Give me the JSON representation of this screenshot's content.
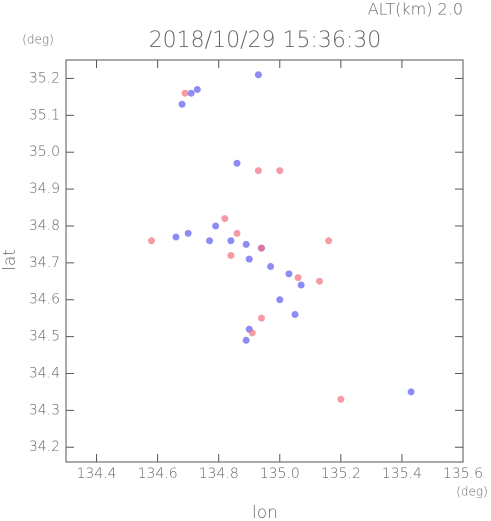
{
  "chart_data": {
    "type": "scatter",
    "title": "ALT(km) 2.0",
    "subtitle": "2018/10/29 15:36:30",
    "x_label": "lon",
    "y_label": "lat",
    "x_unit": "(deg)",
    "y_unit": "(deg)",
    "xlim": [
      134.3,
      135.6
    ],
    "ylim": [
      34.16,
      35.25
    ],
    "xticks": [
      134.4,
      134.6,
      134.8,
      {
        "value": 135,
        "label": "135.0"
      },
      135.2,
      135.4,
      135.6
    ],
    "yticks": [
      34.2,
      34.3,
      34.4,
      34.5,
      34.6,
      34.7,
      34.8,
      34.9,
      {
        "value": 35,
        "label": "35.0"
      },
      35.1,
      35.2
    ],
    "series": [
      {
        "color": "#5b5bf0",
        "x": [
          134.68,
          134.71,
          134.73,
          134.93,
          134.86,
          134.66,
          134.7,
          134.79,
          134.84,
          134.89,
          134.94,
          134.97,
          135.03,
          135.07,
          135.0,
          135.05,
          134.9,
          134.89,
          135.43,
          134.77,
          134.9
        ],
        "values": [
          35.13,
          35.16,
          35.17,
          35.21,
          34.97,
          34.77,
          34.78,
          34.8,
          34.76,
          34.75,
          34.74,
          34.69,
          34.67,
          34.64,
          34.6,
          34.56,
          34.52,
          34.49,
          34.35,
          34.76,
          34.71
        ]
      },
      {
        "color": "#f07080",
        "x": [
          134.84,
          134.86,
          134.94,
          134.93,
          135.0,
          134.58,
          135.2,
          134.94,
          134.91,
          134.82,
          135.06,
          135.13,
          135.16,
          134.69
        ],
        "values": [
          34.72,
          34.78,
          34.74,
          34.95,
          34.95,
          34.76,
          34.33,
          34.55,
          34.51,
          34.82,
          34.66,
          34.65,
          34.76,
          35.16
        ]
      }
    ]
  }
}
